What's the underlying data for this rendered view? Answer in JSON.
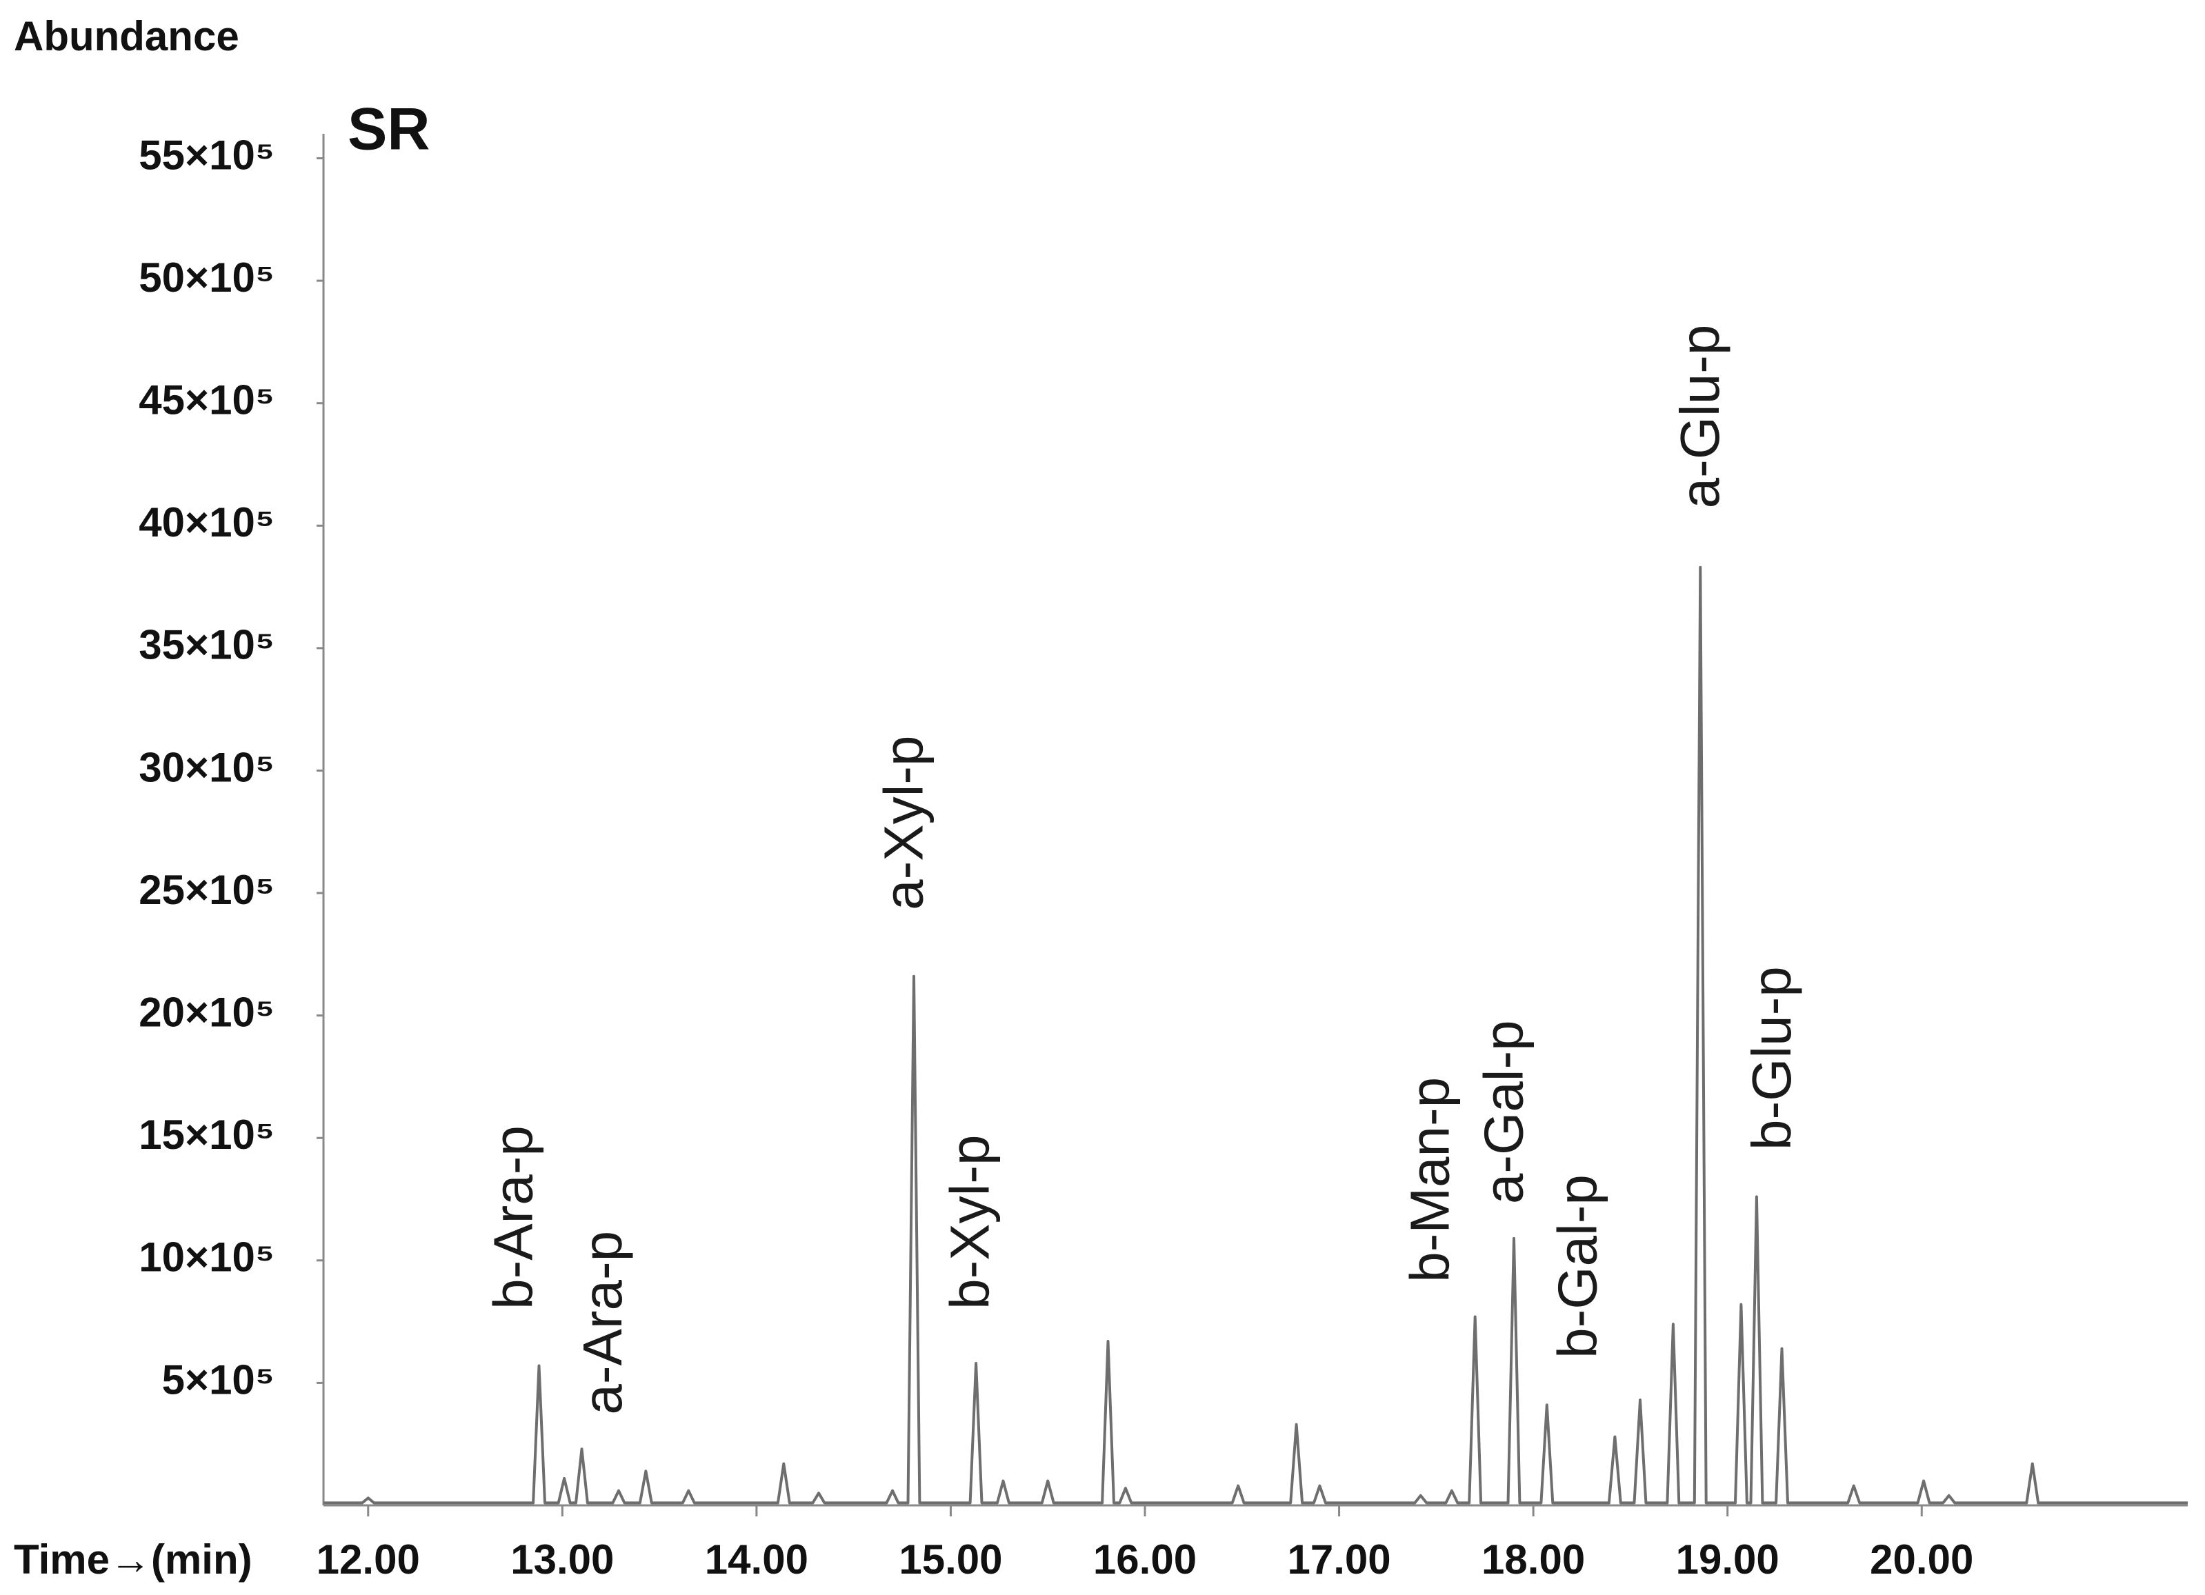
{
  "chart_data": {
    "type": "line",
    "title": "SR",
    "y_label": "Abundance",
    "x_label": "Time→(min)",
    "color": "#6e6e6e",
    "x": [
      11.77,
      11.97,
      12.0,
      12.03,
      12.85,
      12.88,
      12.91,
      12.98,
      13.01,
      13.04,
      13.07,
      13.1,
      13.13,
      13.26,
      13.29,
      13.32,
      13.4,
      13.43,
      13.46,
      13.62,
      13.65,
      13.68,
      14.11,
      14.14,
      14.17,
      14.29,
      14.32,
      14.35,
      14.67,
      14.7,
      14.73,
      14.78,
      14.81,
      14.84,
      15.1,
      15.13,
      15.16,
      15.24,
      15.27,
      15.3,
      15.47,
      15.5,
      15.53,
      15.78,
      15.81,
      15.84,
      15.87,
      15.9,
      15.93,
      16.45,
      16.48,
      16.51,
      16.75,
      16.78,
      16.81,
      16.87,
      16.9,
      16.93,
      17.39,
      17.42,
      17.45,
      17.55,
      17.58,
      17.61,
      17.67,
      17.7,
      17.73,
      17.87,
      17.9,
      17.93,
      18.04,
      18.07,
      18.1,
      18.39,
      18.42,
      18.45,
      18.52,
      18.55,
      18.58,
      18.69,
      18.72,
      18.75,
      18.83,
      18.86,
      18.89,
      19.04,
      19.07,
      19.1,
      19.12,
      19.15,
      19.18,
      19.25,
      19.28,
      19.31,
      19.62,
      19.65,
      19.68,
      19.98,
      20.01,
      20.04,
      20.11,
      20.14,
      20.17,
      20.54,
      20.57,
      20.6,
      21.37
    ],
    "values": [
      10000,
      10000,
      30000,
      10000,
      10000,
      570000,
      10000,
      10000,
      110000,
      10000,
      10000,
      230000,
      10000,
      10000,
      60000,
      10000,
      10000,
      140000,
      10000,
      10000,
      60000,
      10000,
      10000,
      170000,
      10000,
      10000,
      50000,
      10000,
      10000,
      60000,
      10000,
      10000,
      2160000,
      10000,
      10000,
      580000,
      10000,
      10000,
      100000,
      10000,
      10000,
      100000,
      10000,
      10000,
      670000,
      10000,
      10000,
      70000,
      10000,
      10000,
      80000,
      10000,
      10000,
      330000,
      10000,
      10000,
      80000,
      10000,
      10000,
      40000,
      10000,
      10000,
      60000,
      10000,
      10000,
      770000,
      10000,
      10000,
      1090000,
      10000,
      10000,
      410000,
      10000,
      10000,
      280000,
      10000,
      10000,
      430000,
      10000,
      10000,
      740000,
      10000,
      10000,
      3830000,
      10000,
      10000,
      820000,
      10000,
      10000,
      1260000,
      10000,
      10000,
      640000,
      10000,
      10000,
      80000,
      10000,
      10000,
      100000,
      10000,
      10000,
      40000,
      10000,
      10000,
      170000,
      10000,
      10000
    ],
    "xlim": [
      11.77,
      21.37
    ],
    "ylim": [
      0,
      5600000
    ],
    "xticks": [
      {
        "value": 12,
        "label": "12.00"
      },
      {
        "value": 13,
        "label": "13.00"
      },
      {
        "value": 14,
        "label": "14.00"
      },
      {
        "value": 15,
        "label": "15.00"
      },
      {
        "value": 16,
        "label": "16.00"
      },
      {
        "value": 17,
        "label": "17.00"
      },
      {
        "value": 18,
        "label": "18.00"
      },
      {
        "value": 19,
        "label": "19.00"
      },
      {
        "value": 20,
        "label": "20.00"
      }
    ],
    "yticks": [
      {
        "value": 500000,
        "label": "5×10⁵"
      },
      {
        "value": 1000000,
        "label": "10×10⁵"
      },
      {
        "value": 1500000,
        "label": "15×10⁵"
      },
      {
        "value": 2000000,
        "label": "20×10⁵"
      },
      {
        "value": 2500000,
        "label": "25×10⁵"
      },
      {
        "value": 3000000,
        "label": "30×10⁵"
      },
      {
        "value": 3500000,
        "label": "35×10⁵"
      },
      {
        "value": 4000000,
        "label": "40×10⁵"
      },
      {
        "value": 4500000,
        "label": "45×10⁵"
      },
      {
        "value": 5000000,
        "label": "50×10⁵"
      },
      {
        "value": 5500000,
        "label": "55×10⁵"
      }
    ],
    "annotations": [
      {
        "text": "b-Ara-p",
        "x": 12.77,
        "y": 800000
      },
      {
        "text": "a-Ara-p",
        "x": 13.23,
        "y": 370000
      },
      {
        "text": "a-Xyl-p",
        "x": 14.78,
        "y": 2430000
      },
      {
        "text": "b-Xyl-p",
        "x": 15.12,
        "y": 800000
      },
      {
        "text": "b-Man-p",
        "x": 17.49,
        "y": 910000
      },
      {
        "text": "a-Gal-p",
        "x": 17.87,
        "y": 1230000
      },
      {
        "text": "b-Gal-p",
        "x": 18.25,
        "y": 600000
      },
      {
        "text": "a-Glu-p",
        "x": 18.88,
        "y": 4070000
      },
      {
        "text": "b-Glu-p",
        "x": 19.25,
        "y": 1450000
      }
    ]
  }
}
